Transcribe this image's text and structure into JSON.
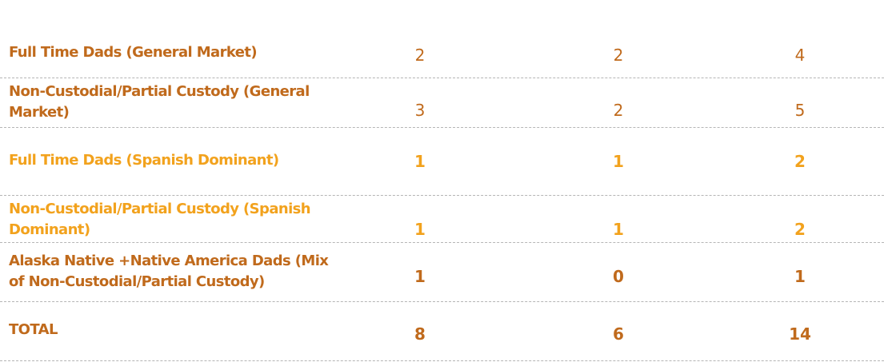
{
  "table": {
    "rows": [
      {
        "label": "Full Time Dads (General Market)",
        "values": [
          2,
          2,
          4
        ]
      },
      {
        "label": "Non-Custodial/Partial Custody (General Market)",
        "values": [
          3,
          2,
          5
        ]
      },
      {
        "label": "Full Time Dads (Spanish Dominant)",
        "values": [
          1,
          1,
          2
        ]
      },
      {
        "label": "Non-Custodial/Partial Custody (Spanish Dominant)",
        "values": [
          1,
          1,
          2
        ]
      },
      {
        "label": "Alaska Native +Native America Dads (Mix of Non-Custodial/Partial Custody)",
        "values": [
          1,
          0,
          1
        ]
      },
      {
        "label": "TOTAL",
        "values": [
          8,
          6,
          14
        ]
      }
    ]
  }
}
